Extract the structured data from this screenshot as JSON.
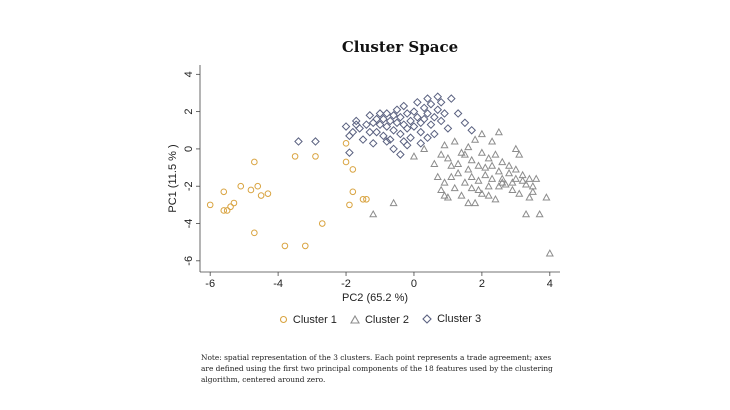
{
  "chart_data": {
    "type": "scatter",
    "title": "Cluster Space",
    "xlabel": "PC2 (65.2 %)",
    "ylabel": "PC1 (11.5 % )",
    "xlim": [
      -6.3,
      4.3
    ],
    "ylim": [
      -6.6,
      4.5
    ],
    "xticks": [
      -6,
      -4,
      -2,
      0,
      2,
      4
    ],
    "yticks": [
      4,
      2,
      0,
      -2,
      -4,
      -6
    ],
    "grid": false,
    "legend_position": "bottom",
    "series": [
      {
        "name": "Cluster 1",
        "marker": "circle",
        "color": "#d9a441",
        "points": [
          [
            -6.0,
            -3.0
          ],
          [
            -5.6,
            -2.3
          ],
          [
            -5.5,
            -3.3
          ],
          [
            -5.6,
            -3.3
          ],
          [
            -5.4,
            -3.1
          ],
          [
            -5.3,
            -2.9
          ],
          [
            -5.1,
            -2.0
          ],
          [
            -4.8,
            -2.2
          ],
          [
            -4.7,
            -0.7
          ],
          [
            -4.6,
            -2.0
          ],
          [
            -4.5,
            -2.5
          ],
          [
            -4.3,
            -2.4
          ],
          [
            -4.7,
            -4.5
          ],
          [
            -3.8,
            -5.2
          ],
          [
            -3.2,
            -5.2
          ],
          [
            -3.5,
            -0.4
          ],
          [
            -2.9,
            -0.4
          ],
          [
            -2.7,
            -4.0
          ],
          [
            -2.0,
            -0.7
          ],
          [
            -1.8,
            -1.1
          ],
          [
            -1.8,
            -2.3
          ],
          [
            -1.9,
            -3.0
          ],
          [
            -1.5,
            -2.7
          ],
          [
            -1.4,
            -2.7
          ],
          [
            -2.0,
            0.3
          ]
        ]
      },
      {
        "name": "Cluster 2",
        "marker": "triangle",
        "color": "#8c8c8c",
        "points": [
          [
            -1.2,
            -3.5
          ],
          [
            -0.6,
            -2.9
          ],
          [
            0.0,
            -0.4
          ],
          [
            0.3,
            0.0
          ],
          [
            0.6,
            -0.8
          ],
          [
            0.8,
            -0.3
          ],
          [
            0.9,
            0.2
          ],
          [
            0.7,
            -1.5
          ],
          [
            0.9,
            -1.8
          ],
          [
            1.0,
            -2.6
          ],
          [
            0.8,
            -2.2
          ],
          [
            1.0,
            -0.5
          ],
          [
            1.1,
            -1.5
          ],
          [
            1.2,
            -2.1
          ],
          [
            1.2,
            0.4
          ],
          [
            1.3,
            -0.8
          ],
          [
            1.3,
            -1.3
          ],
          [
            1.4,
            -2.5
          ],
          [
            1.5,
            -0.3
          ],
          [
            1.5,
            -1.8
          ],
          [
            1.6,
            0.1
          ],
          [
            1.6,
            -1.1
          ],
          [
            1.6,
            -2.9
          ],
          [
            1.7,
            -0.6
          ],
          [
            1.7,
            -1.5
          ],
          [
            1.7,
            -2.1
          ],
          [
            1.8,
            0.5
          ],
          [
            1.8,
            -2.9
          ],
          [
            1.9,
            -0.9
          ],
          [
            1.9,
            -1.7
          ],
          [
            2.0,
            -0.2
          ],
          [
            2.0,
            -2.4
          ],
          [
            2.1,
            -1.0
          ],
          [
            2.1,
            -1.4
          ],
          [
            2.2,
            -0.5
          ],
          [
            2.2,
            -2.0
          ],
          [
            2.3,
            -0.9
          ],
          [
            2.3,
            -1.6
          ],
          [
            2.4,
            -0.3
          ],
          [
            2.4,
            -2.7
          ],
          [
            2.5,
            -1.2
          ],
          [
            2.5,
            -2.0
          ],
          [
            2.6,
            -0.7
          ],
          [
            2.6,
            -1.6
          ],
          [
            2.7,
            -1.9
          ],
          [
            2.8,
            -1.3
          ],
          [
            2.8,
            -0.9
          ],
          [
            2.9,
            -1.8
          ],
          [
            2.9,
            -2.2
          ],
          [
            3.0,
            -1.1
          ],
          [
            3.0,
            -1.6
          ],
          [
            3.1,
            -2.4
          ],
          [
            3.1,
            -0.3
          ],
          [
            3.2,
            -1.4
          ],
          [
            3.2,
            -1.7
          ],
          [
            3.3,
            -1.9
          ],
          [
            3.3,
            -3.5
          ],
          [
            3.4,
            -1.6
          ],
          [
            3.5,
            -2.0
          ],
          [
            3.5,
            -2.3
          ],
          [
            3.6,
            -1.6
          ],
          [
            3.7,
            -3.5
          ],
          [
            3.9,
            -2.6
          ],
          [
            4.0,
            -5.6
          ],
          [
            2.5,
            0.9
          ],
          [
            2.3,
            0.4
          ],
          [
            3.0,
            0.0
          ],
          [
            2.0,
            0.8
          ],
          [
            1.4,
            -0.2
          ],
          [
            2.6,
            -1.8
          ],
          [
            1.1,
            -0.9
          ],
          [
            2.2,
            -2.5
          ],
          [
            3.4,
            -2.6
          ],
          [
            0.9,
            -2.5
          ],
          [
            1.9,
            -2.2
          ]
        ]
      },
      {
        "name": "Cluster 3",
        "marker": "diamond",
        "color": "#5a6180",
        "points": [
          [
            -3.4,
            0.4
          ],
          [
            -2.9,
            0.4
          ],
          [
            -2.0,
            1.2
          ],
          [
            -1.9,
            0.7
          ],
          [
            -1.8,
            0.9
          ],
          [
            -1.7,
            1.5
          ],
          [
            -1.6,
            1.1
          ],
          [
            -1.5,
            0.5
          ],
          [
            -1.4,
            1.3
          ],
          [
            -1.3,
            1.8
          ],
          [
            -1.3,
            0.9
          ],
          [
            -1.2,
            1.4
          ],
          [
            -1.1,
            1.6
          ],
          [
            -1.1,
            0.9
          ],
          [
            -1.0,
            1.9
          ],
          [
            -1.0,
            1.3
          ],
          [
            -0.9,
            1.6
          ],
          [
            -0.9,
            0.7
          ],
          [
            -0.8,
            1.9
          ],
          [
            -0.8,
            1.2
          ],
          [
            -0.7,
            1.5
          ],
          [
            -0.7,
            0.5
          ],
          [
            -0.6,
            1.8
          ],
          [
            -0.6,
            1.0
          ],
          [
            -0.5,
            1.4
          ],
          [
            -0.5,
            2.1
          ],
          [
            -0.4,
            1.7
          ],
          [
            -0.4,
            0.8
          ],
          [
            -0.3,
            1.3
          ],
          [
            -0.3,
            2.3
          ],
          [
            -0.2,
            1.9
          ],
          [
            -0.2,
            1.1
          ],
          [
            -0.1,
            1.5
          ],
          [
            -0.1,
            0.6
          ],
          [
            0.0,
            2.0
          ],
          [
            0.0,
            1.2
          ],
          [
            0.1,
            1.7
          ],
          [
            0.1,
            2.5
          ],
          [
            0.2,
            1.4
          ],
          [
            0.2,
            0.9
          ],
          [
            0.3,
            2.2
          ],
          [
            0.3,
            1.6
          ],
          [
            0.4,
            2.7
          ],
          [
            0.4,
            1.9
          ],
          [
            0.5,
            1.3
          ],
          [
            0.5,
            2.4
          ],
          [
            0.6,
            1.7
          ],
          [
            0.6,
            0.8
          ],
          [
            0.7,
            2.8
          ],
          [
            0.7,
            2.1
          ],
          [
            0.8,
            1.5
          ],
          [
            0.8,
            2.5
          ],
          [
            0.9,
            1.9
          ],
          [
            1.0,
            1.1
          ],
          [
            1.1,
            2.7
          ],
          [
            1.3,
            1.9
          ],
          [
            1.5,
            1.4
          ],
          [
            1.7,
            1.0
          ],
          [
            -0.4,
            -0.3
          ],
          [
            -0.6,
            0.0
          ],
          [
            -0.2,
            0.2
          ],
          [
            -1.2,
            0.3
          ],
          [
            -0.8,
            0.4
          ],
          [
            0.2,
            0.3
          ],
          [
            -1.9,
            -0.2
          ],
          [
            -1.7,
            1.3
          ],
          [
            -0.3,
            0.4
          ],
          [
            0.4,
            0.6
          ]
        ]
      }
    ]
  },
  "note": "Note: spatial representation of the 3 clusters. Each point represents a trade agreement; axes are defined using the first two principal components of the 18 features used by the clustering algorithm, centered around zero."
}
